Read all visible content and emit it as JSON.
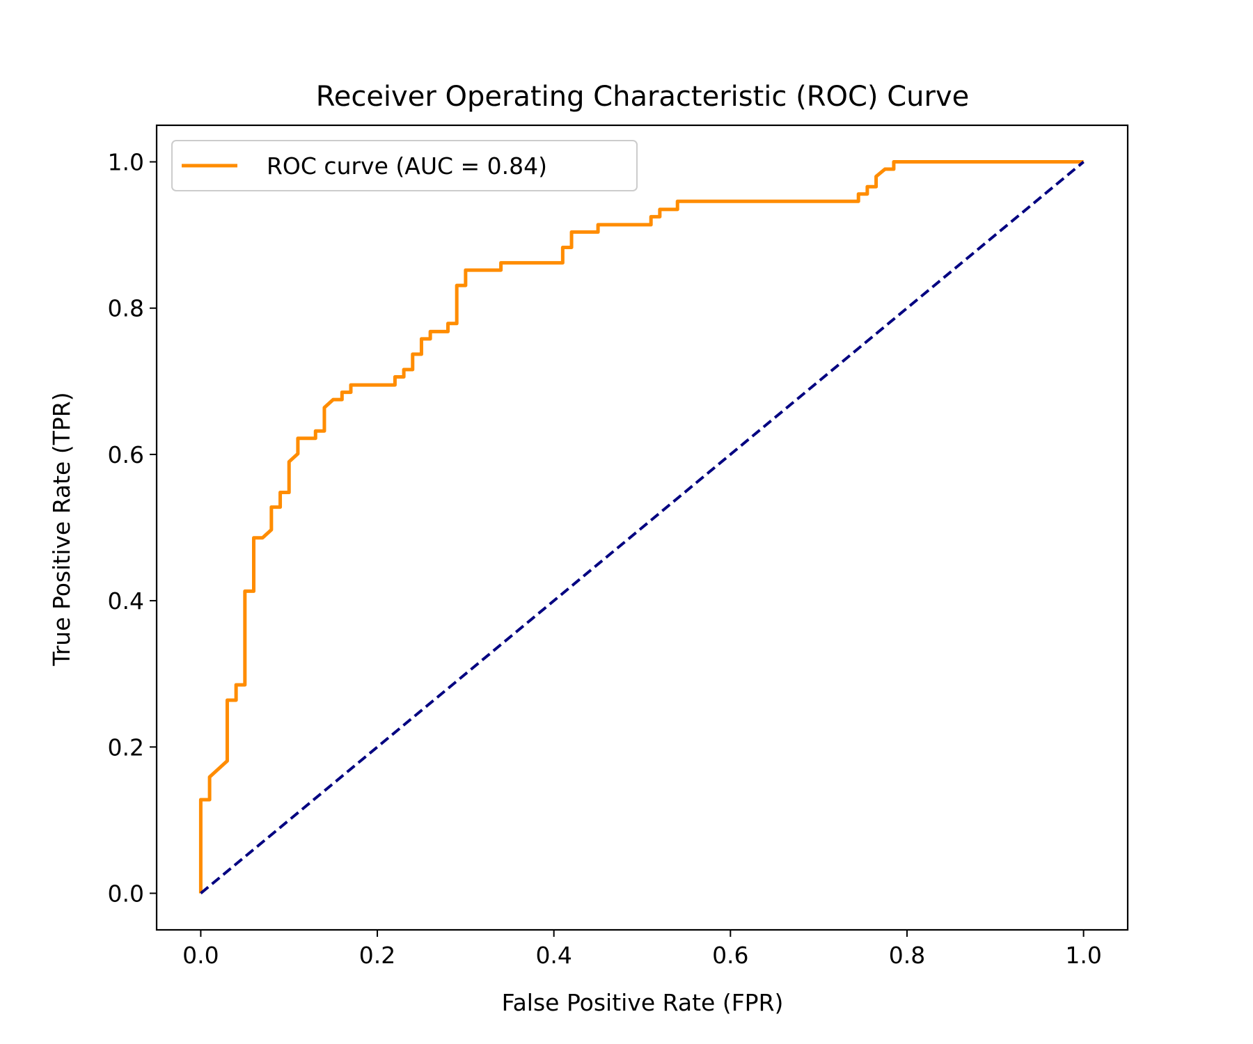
{
  "chart_data": {
    "type": "line",
    "title": "Receiver Operating Characteristic (ROC) Curve",
    "xlabel": "False Positive Rate (FPR)",
    "ylabel": "True Positive Rate (TPR)",
    "xlim": [
      -0.05,
      1.05
    ],
    "ylim": [
      -0.05,
      1.05
    ],
    "xticks": [
      0.0,
      0.2,
      0.4,
      0.6,
      0.8,
      1.0
    ],
    "yticks": [
      0.0,
      0.2,
      0.4,
      0.6,
      0.8,
      1.0
    ],
    "xtick_labels": [
      "0.0",
      "0.2",
      "0.4",
      "0.6",
      "0.8",
      "1.0"
    ],
    "ytick_labels": [
      "0.0",
      "0.2",
      "0.4",
      "0.6",
      "0.8",
      "1.0"
    ],
    "grid": false,
    "legend_position": "upper-left",
    "series": [
      {
        "name": "ROC curve (AUC = 0.84)",
        "color": "#ff8c00",
        "style": "solid",
        "x": [
          0.0,
          0.0,
          0.01,
          0.01,
          0.02,
          0.03,
          0.03,
          0.04,
          0.04,
          0.05,
          0.05,
          0.06,
          0.06,
          0.07,
          0.08,
          0.08,
          0.09,
          0.09,
          0.1,
          0.1,
          0.11,
          0.11,
          0.13,
          0.13,
          0.14,
          0.14,
          0.15,
          0.16,
          0.16,
          0.17,
          0.17,
          0.22,
          0.22,
          0.23,
          0.23,
          0.24,
          0.24,
          0.25,
          0.25,
          0.26,
          0.26,
          0.28,
          0.28,
          0.29,
          0.29,
          0.3,
          0.3,
          0.34,
          0.34,
          0.41,
          0.41,
          0.42,
          0.42,
          0.45,
          0.45,
          0.51,
          0.51,
          0.52,
          0.52,
          0.54,
          0.54,
          0.745,
          0.745,
          0.755,
          0.755,
          0.765,
          0.765,
          0.775,
          0.785,
          0.785,
          1.0
        ],
        "y": [
          0.0,
          0.128,
          0.128,
          0.159,
          0.17,
          0.181,
          0.264,
          0.264,
          0.285,
          0.285,
          0.413,
          0.413,
          0.486,
          0.486,
          0.497,
          0.528,
          0.528,
          0.548,
          0.548,
          0.59,
          0.601,
          0.622,
          0.622,
          0.632,
          0.632,
          0.664,
          0.675,
          0.675,
          0.685,
          0.685,
          0.695,
          0.695,
          0.706,
          0.706,
          0.716,
          0.716,
          0.737,
          0.737,
          0.758,
          0.758,
          0.768,
          0.768,
          0.779,
          0.779,
          0.831,
          0.831,
          0.852,
          0.852,
          0.862,
          0.862,
          0.883,
          0.883,
          0.904,
          0.904,
          0.914,
          0.914,
          0.925,
          0.925,
          0.935,
          0.935,
          0.946,
          0.946,
          0.956,
          0.956,
          0.966,
          0.966,
          0.98,
          0.99,
          0.99,
          1.0,
          1.0
        ]
      },
      {
        "color": "#000080",
        "style": "dashed",
        "x": [
          0.0,
          1.0
        ],
        "y": [
          0.0,
          1.0
        ]
      }
    ]
  }
}
